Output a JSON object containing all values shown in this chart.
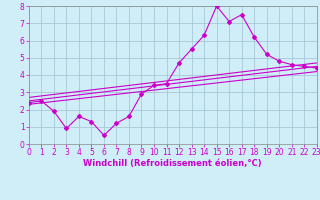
{
  "title": "",
  "xlabel": "Windchill (Refroidissement éolien,°C)",
  "bg_color": "#d0eef8",
  "line_color": "#cc00cc",
  "grid_color": "#a8c8d8",
  "xlim": [
    0,
    23
  ],
  "ylim": [
    0,
    8
  ],
  "xticks": [
    0,
    1,
    2,
    3,
    4,
    5,
    6,
    7,
    8,
    9,
    10,
    11,
    12,
    13,
    14,
    15,
    16,
    17,
    18,
    19,
    20,
    21,
    22,
    23
  ],
  "yticks": [
    0,
    1,
    2,
    3,
    4,
    5,
    6,
    7,
    8
  ],
  "series1_x": [
    0,
    1,
    2,
    3,
    4,
    5,
    6,
    7,
    8,
    9,
    10,
    11,
    12,
    13,
    14,
    15,
    16,
    17,
    18,
    19,
    20,
    21,
    22,
    23
  ],
  "series1_y": [
    2.4,
    2.5,
    1.9,
    0.9,
    1.6,
    1.3,
    0.5,
    1.2,
    1.6,
    2.9,
    3.4,
    3.5,
    4.7,
    5.5,
    6.3,
    8.0,
    7.1,
    7.5,
    6.2,
    5.2,
    4.8,
    4.6,
    4.5,
    4.4
  ],
  "reg_lines": [
    {
      "x": [
        0,
        23
      ],
      "y": [
        2.3,
        4.2
      ]
    },
    {
      "x": [
        0,
        23
      ],
      "y": [
        2.5,
        4.5
      ]
    },
    {
      "x": [
        0,
        23
      ],
      "y": [
        2.7,
        4.7
      ]
    }
  ],
  "tick_color": "#cc00cc",
  "label_color": "#cc00cc",
  "tick_fontsize": 5.5,
  "xlabel_fontsize": 6.0,
  "bottom_bar_color": "#660066"
}
